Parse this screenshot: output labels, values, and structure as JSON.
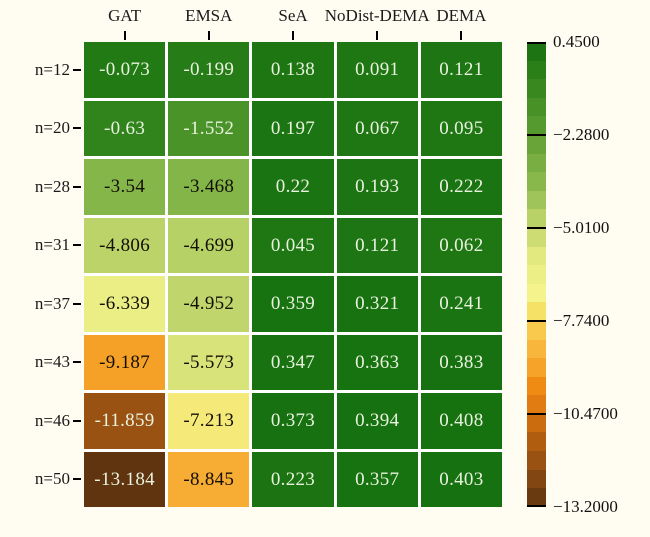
{
  "canvas": {
    "background": "#fffdf2",
    "grid_gap_color": "#ffffff"
  },
  "chart_data": {
    "type": "heatmap",
    "columns": [
      "GAT",
      "EMSA",
      "SeA",
      "NoDist-DEMA",
      "DEMA"
    ],
    "rows": [
      "n=12",
      "n=20",
      "n=28",
      "n=31",
      "n=37",
      "n=43",
      "n=46",
      "n=50"
    ],
    "cell_labels": [
      [
        "-0.073",
        "-0.199",
        "0.138",
        "0.091",
        "0.121"
      ],
      [
        "-0.63",
        "-1.552",
        "0.197",
        "0.067",
        "0.095"
      ],
      [
        "-3.54",
        "-3.468",
        "0.22",
        "0.193",
        "0.222"
      ],
      [
        "-4.806",
        "-4.699",
        "0.045",
        "0.121",
        "0.062"
      ],
      [
        "-6.339",
        "-4.952",
        "0.359",
        "0.321",
        "0.241"
      ],
      [
        "-9.187",
        "-5.573",
        "0.347",
        "0.363",
        "0.383"
      ],
      [
        "-11.859",
        "-7.213",
        "0.373",
        "0.394",
        "0.408"
      ],
      [
        "-13.184",
        "-8.845",
        "0.223",
        "0.357",
        "0.403"
      ]
    ],
    "values": [
      [
        -0.073,
        -0.199,
        0.138,
        0.091,
        0.121
      ],
      [
        -0.63,
        -1.552,
        0.197,
        0.067,
        0.095
      ],
      [
        -3.54,
        -3.468,
        0.22,
        0.193,
        0.222
      ],
      [
        -4.806,
        -4.699,
        0.045,
        0.121,
        0.062
      ],
      [
        -6.339,
        -4.952,
        0.359,
        0.321,
        0.241
      ],
      [
        -9.187,
        -5.573,
        0.347,
        0.363,
        0.383
      ],
      [
        -11.859,
        -7.213,
        0.373,
        0.394,
        0.408
      ],
      [
        -13.184,
        -8.845,
        0.223,
        0.357,
        0.403
      ]
    ],
    "vmax": 0.45,
    "vmin": -13.2,
    "colorbar": {
      "tick_labels": [
        "0.4500",
        "−2.2800",
        "−5.0100",
        "−7.7400",
        "−10.4700",
        "−13.2000"
      ],
      "tick_values": [
        0.45,
        -2.28,
        -5.01,
        -7.74,
        -10.47,
        -13.2
      ],
      "steps": 25,
      "position": "right"
    },
    "colormap_stops": [
      [
        0.0,
        "#15700f"
      ],
      [
        0.06,
        "#2a7f18"
      ],
      [
        0.125,
        "#438e24"
      ],
      [
        0.2,
        "#5b9e31"
      ],
      [
        0.232,
        "#6fa83c"
      ],
      [
        0.31,
        "#8cba4e"
      ],
      [
        0.387,
        "#bcd46a"
      ],
      [
        0.465,
        "#e4ea80"
      ],
      [
        0.542,
        "#f5f48c"
      ],
      [
        0.581,
        "#f6e066"
      ],
      [
        0.619,
        "#f9c94e"
      ],
      [
        0.697,
        "#f7a52c"
      ],
      [
        0.738,
        "#f08c12"
      ],
      [
        0.8,
        "#d87410"
      ],
      [
        0.834,
        "#c2660f"
      ],
      [
        0.873,
        "#a95810"
      ],
      [
        0.912,
        "#935013"
      ],
      [
        0.95,
        "#7a4312"
      ],
      [
        1.0,
        "#5e340e"
      ]
    ],
    "text_color_light": "#e9f2df",
    "text_color_dark": "#140f05",
    "grid_on": true,
    "legend_position": "none"
  }
}
